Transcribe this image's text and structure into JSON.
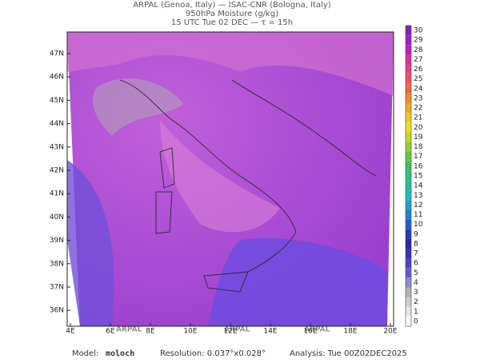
{
  "header": {
    "line1": "ARPAL (Genoa, Italy)  —  ISAC-CNR (Bologna, Italy)",
    "line2": "950hPa Moisture (g/kg)",
    "line3": "15 UTC Tue 02 DEC  —  τ = 15h"
  },
  "map": {
    "lat_labels": [
      "47N",
      "46N",
      "45N",
      "44N",
      "43N",
      "42N",
      "41N",
      "40N",
      "39N",
      "38N",
      "37N",
      "36N"
    ],
    "lon_labels": [
      "4E",
      "6E",
      "8E",
      "10E",
      "12E",
      "14E",
      "16E",
      "18E",
      "20E"
    ],
    "watermark": "ARPAL"
  },
  "colorbar": {
    "ticks": [
      0,
      1,
      2,
      3,
      4,
      5,
      6,
      7,
      8,
      9,
      10,
      11,
      12,
      13,
      14,
      15,
      16,
      17,
      18,
      19,
      20,
      21,
      22,
      23,
      24,
      25,
      26,
      27,
      28,
      29,
      30
    ],
    "colors": [
      "#ffffff",
      "#e6e6e6",
      "#cccccc",
      "#b3b3b3",
      "#8c8cc8",
      "#6a5acd",
      "#5040c8",
      "#3c30b4",
      "#2828a0",
      "#2040b0",
      "#2060c8",
      "#2080d0",
      "#20a0d0",
      "#20b8c0",
      "#20c0a0",
      "#30c080",
      "#40c060",
      "#60c840",
      "#90d030",
      "#c0d820",
      "#e8e020",
      "#f0c820",
      "#f0a820",
      "#f08830",
      "#f06840",
      "#f05060",
      "#e84080",
      "#d830a0",
      "#c020c0",
      "#a020c8",
      "#8020c0"
    ]
  },
  "footer": {
    "model_label": "Model:",
    "model": "moloch",
    "resolution": "Resolution: 0.037°x0.028°",
    "analysis": "Analysis: Tue 00Z02DEC2025"
  }
}
